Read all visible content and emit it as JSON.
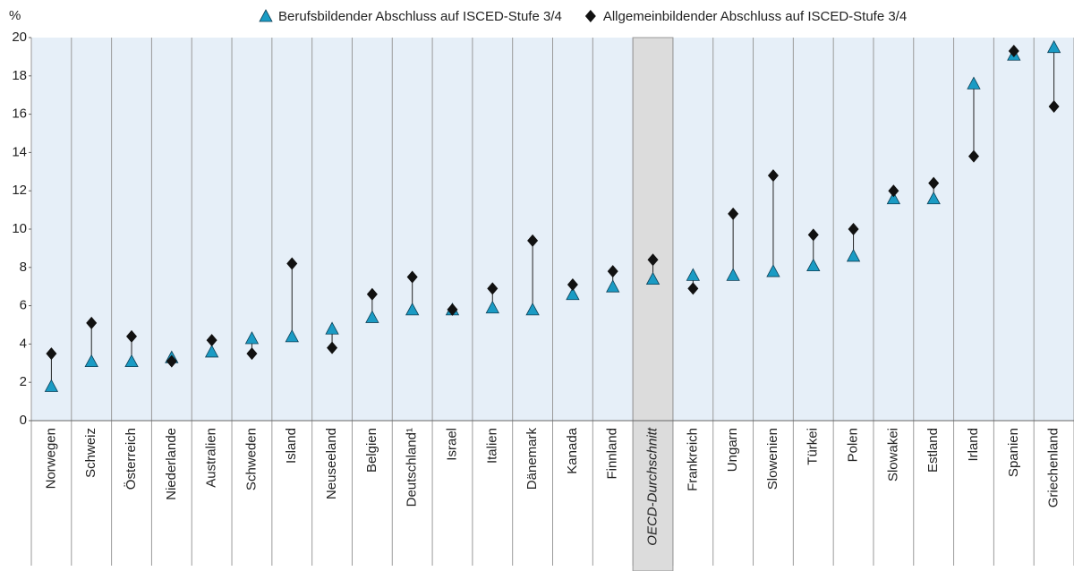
{
  "chart_data": {
    "type": "dot-range",
    "y_label": "%",
    "categories": [
      "Norwegen",
      "Schweiz",
      "Österreich",
      "Niederlande",
      "Australien",
      "Schweden",
      "Island",
      "Neuseeland",
      "Belgien",
      "Deutschland¹",
      "Israel",
      "Italien",
      "Dänemark",
      "Kanada",
      "Finnland",
      "OECD-Durchschnitt",
      "Frankreich",
      "Ungarn",
      "Slowenien",
      "Türkei",
      "Polen",
      "Slowakei",
      "Estland",
      "Irland",
      "Spanien",
      "Griechenland"
    ],
    "series": [
      {
        "name": "Berufsbildender Abschluss auf ISCED-Stufe 3/4",
        "color": "#1a9bc4",
        "marker": "triangle",
        "values": [
          1.8,
          3.1,
          3.1,
          3.3,
          3.6,
          4.3,
          4.4,
          4.8,
          5.4,
          5.8,
          5.8,
          5.9,
          5.8,
          6.6,
          7.0,
          7.4,
          7.6,
          7.6,
          7.8,
          8.1,
          8.6,
          11.6,
          11.6,
          17.6,
          19.1,
          19.5
        ]
      },
      {
        "name": "Allgemeinbildender Abschluss auf ISCED-Stufe 3/4",
        "color": "#111111",
        "marker": "diamond",
        "values": [
          3.5,
          5.1,
          4.4,
          3.1,
          4.2,
          3.5,
          8.2,
          3.8,
          6.6,
          7.5,
          5.8,
          6.9,
          9.4,
          7.1,
          7.8,
          8.4,
          6.9,
          10.8,
          12.8,
          9.7,
          10.0,
          12.0,
          12.4,
          13.8,
          19.3,
          16.4
        ]
      }
    ],
    "ylim": [
      0,
      20
    ],
    "yticks": [
      0,
      2,
      4,
      6,
      8,
      10,
      12,
      14,
      16,
      18,
      20
    ],
    "highlight": {
      "index": 15,
      "color": "#dcdcdc"
    },
    "plot_background": "#e6eff8"
  }
}
